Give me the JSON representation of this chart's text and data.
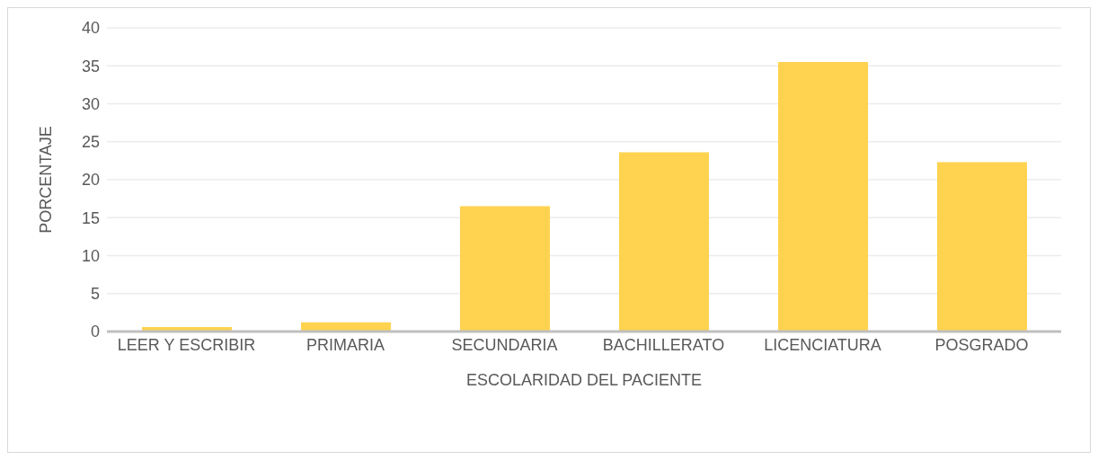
{
  "chart_data": {
    "type": "bar",
    "categories": [
      "LEER Y ESCRIBIR",
      "PRIMARIA",
      "SECUNDARIA",
      "BACHILLERATO",
      "LICENCIATURA",
      "POSGRADO"
    ],
    "values": [
      0.6,
      1.2,
      16.5,
      23.6,
      35.5,
      22.3
    ],
    "color": "#ffd34f",
    "xlabel": "ESCOLARIDAD DEL PACIENTE",
    "ylabel": "PORCENTAJE",
    "ylim": [
      0,
      40
    ],
    "yticks": [
      0,
      5,
      10,
      15,
      20,
      25,
      30,
      35,
      40
    ],
    "grid": "y",
    "legend": false
  }
}
